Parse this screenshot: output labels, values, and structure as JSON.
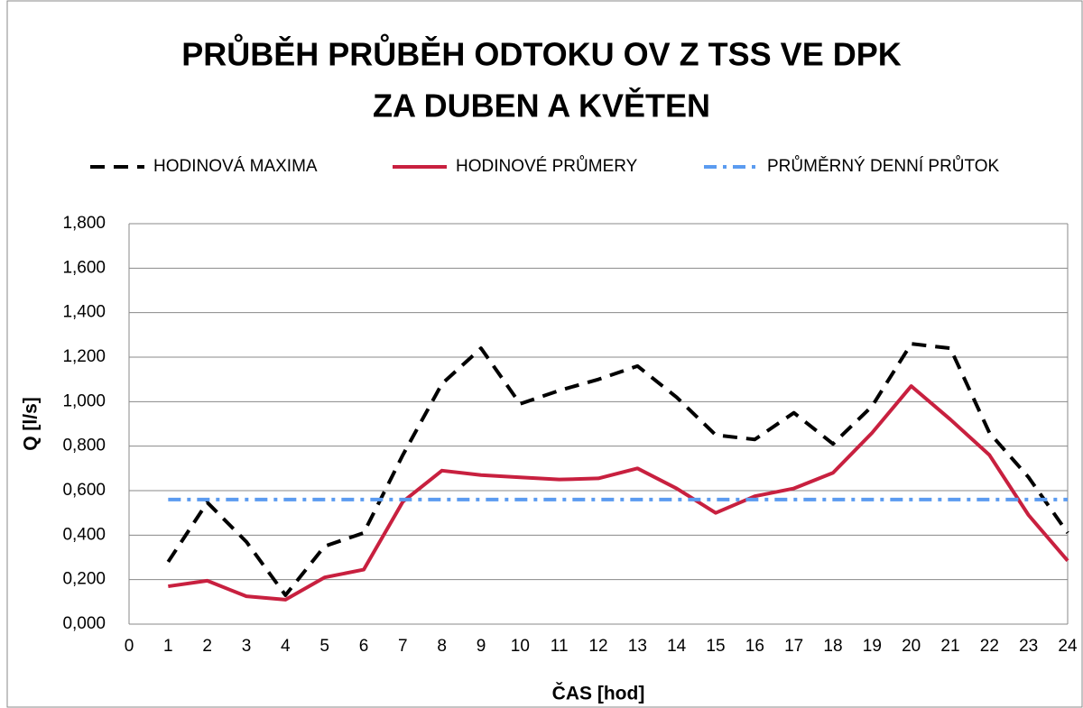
{
  "chart_data": {
    "type": "line",
    "title": [
      "PRŮBĚH PRŮBĚH ODTOKU OV Z TSS VE DPK",
      "ZA DUBEN A KVĚTEN"
    ],
    "x_label": "ČAS [hod]",
    "y_label": "Q [l/s]",
    "x": [
      1,
      2,
      3,
      4,
      5,
      6,
      7,
      8,
      9,
      10,
      11,
      12,
      13,
      14,
      15,
      16,
      17,
      18,
      19,
      20,
      21,
      22,
      23,
      24
    ],
    "series": [
      {
        "name": "HODINOVÁ MAXIMA",
        "color": "#000000",
        "dash": "dash",
        "values": [
          0.28,
          0.547,
          0.37,
          0.13,
          0.35,
          0.41,
          0.76,
          1.08,
          1.24,
          0.99,
          1.05,
          1.1,
          1.16,
          1.02,
          0.85,
          0.83,
          0.95,
          0.81,
          0.98,
          1.26,
          1.24,
          0.86,
          0.66,
          0.41
        ]
      },
      {
        "name": "HODINOVÉ PRŮMERY",
        "color": "#c8203f",
        "dash": "solid",
        "values": [
          0.17,
          0.195,
          0.125,
          0.11,
          0.21,
          0.245,
          0.55,
          0.69,
          0.67,
          0.66,
          0.65,
          0.655,
          0.7,
          0.61,
          0.5,
          0.575,
          0.61,
          0.68,
          0.86,
          1.07,
          0.92,
          0.76,
          0.49,
          0.285
        ]
      },
      {
        "name": "PRŮMĚRNÝ DENNÍ PRŮTOK",
        "color": "#5b9bf0",
        "dash": "dashdot",
        "values": [
          0.56,
          0.56,
          0.56,
          0.56,
          0.56,
          0.56,
          0.56,
          0.56,
          0.56,
          0.56,
          0.56,
          0.56,
          0.56,
          0.56,
          0.56,
          0.56,
          0.56,
          0.56,
          0.56,
          0.56,
          0.56,
          0.56,
          0.56,
          0.56
        ]
      }
    ],
    "xlim": [
      0,
      24
    ],
    "xticks": [
      0,
      1,
      2,
      3,
      4,
      5,
      6,
      7,
      8,
      9,
      10,
      11,
      12,
      13,
      14,
      15,
      16,
      17,
      18,
      19,
      20,
      21,
      22,
      23,
      24
    ],
    "ylim": [
      0,
      1.8
    ],
    "yticks": [
      {
        "value": 0,
        "label": "0,000"
      },
      {
        "value": 0.2,
        "label": "0,200"
      },
      {
        "value": 0.4,
        "label": "0,400"
      },
      {
        "value": 0.6,
        "label": "0,600"
      },
      {
        "value": 0.8,
        "label": "0,800"
      },
      {
        "value": 1.0,
        "label": "1,000"
      },
      {
        "value": 1.2,
        "label": "1,200"
      },
      {
        "value": 1.4,
        "label": "1,400"
      },
      {
        "value": 1.6,
        "label": "1,600"
      },
      {
        "value": 1.8,
        "label": "1,800"
      }
    ],
    "grid": true,
    "legend": "top"
  }
}
